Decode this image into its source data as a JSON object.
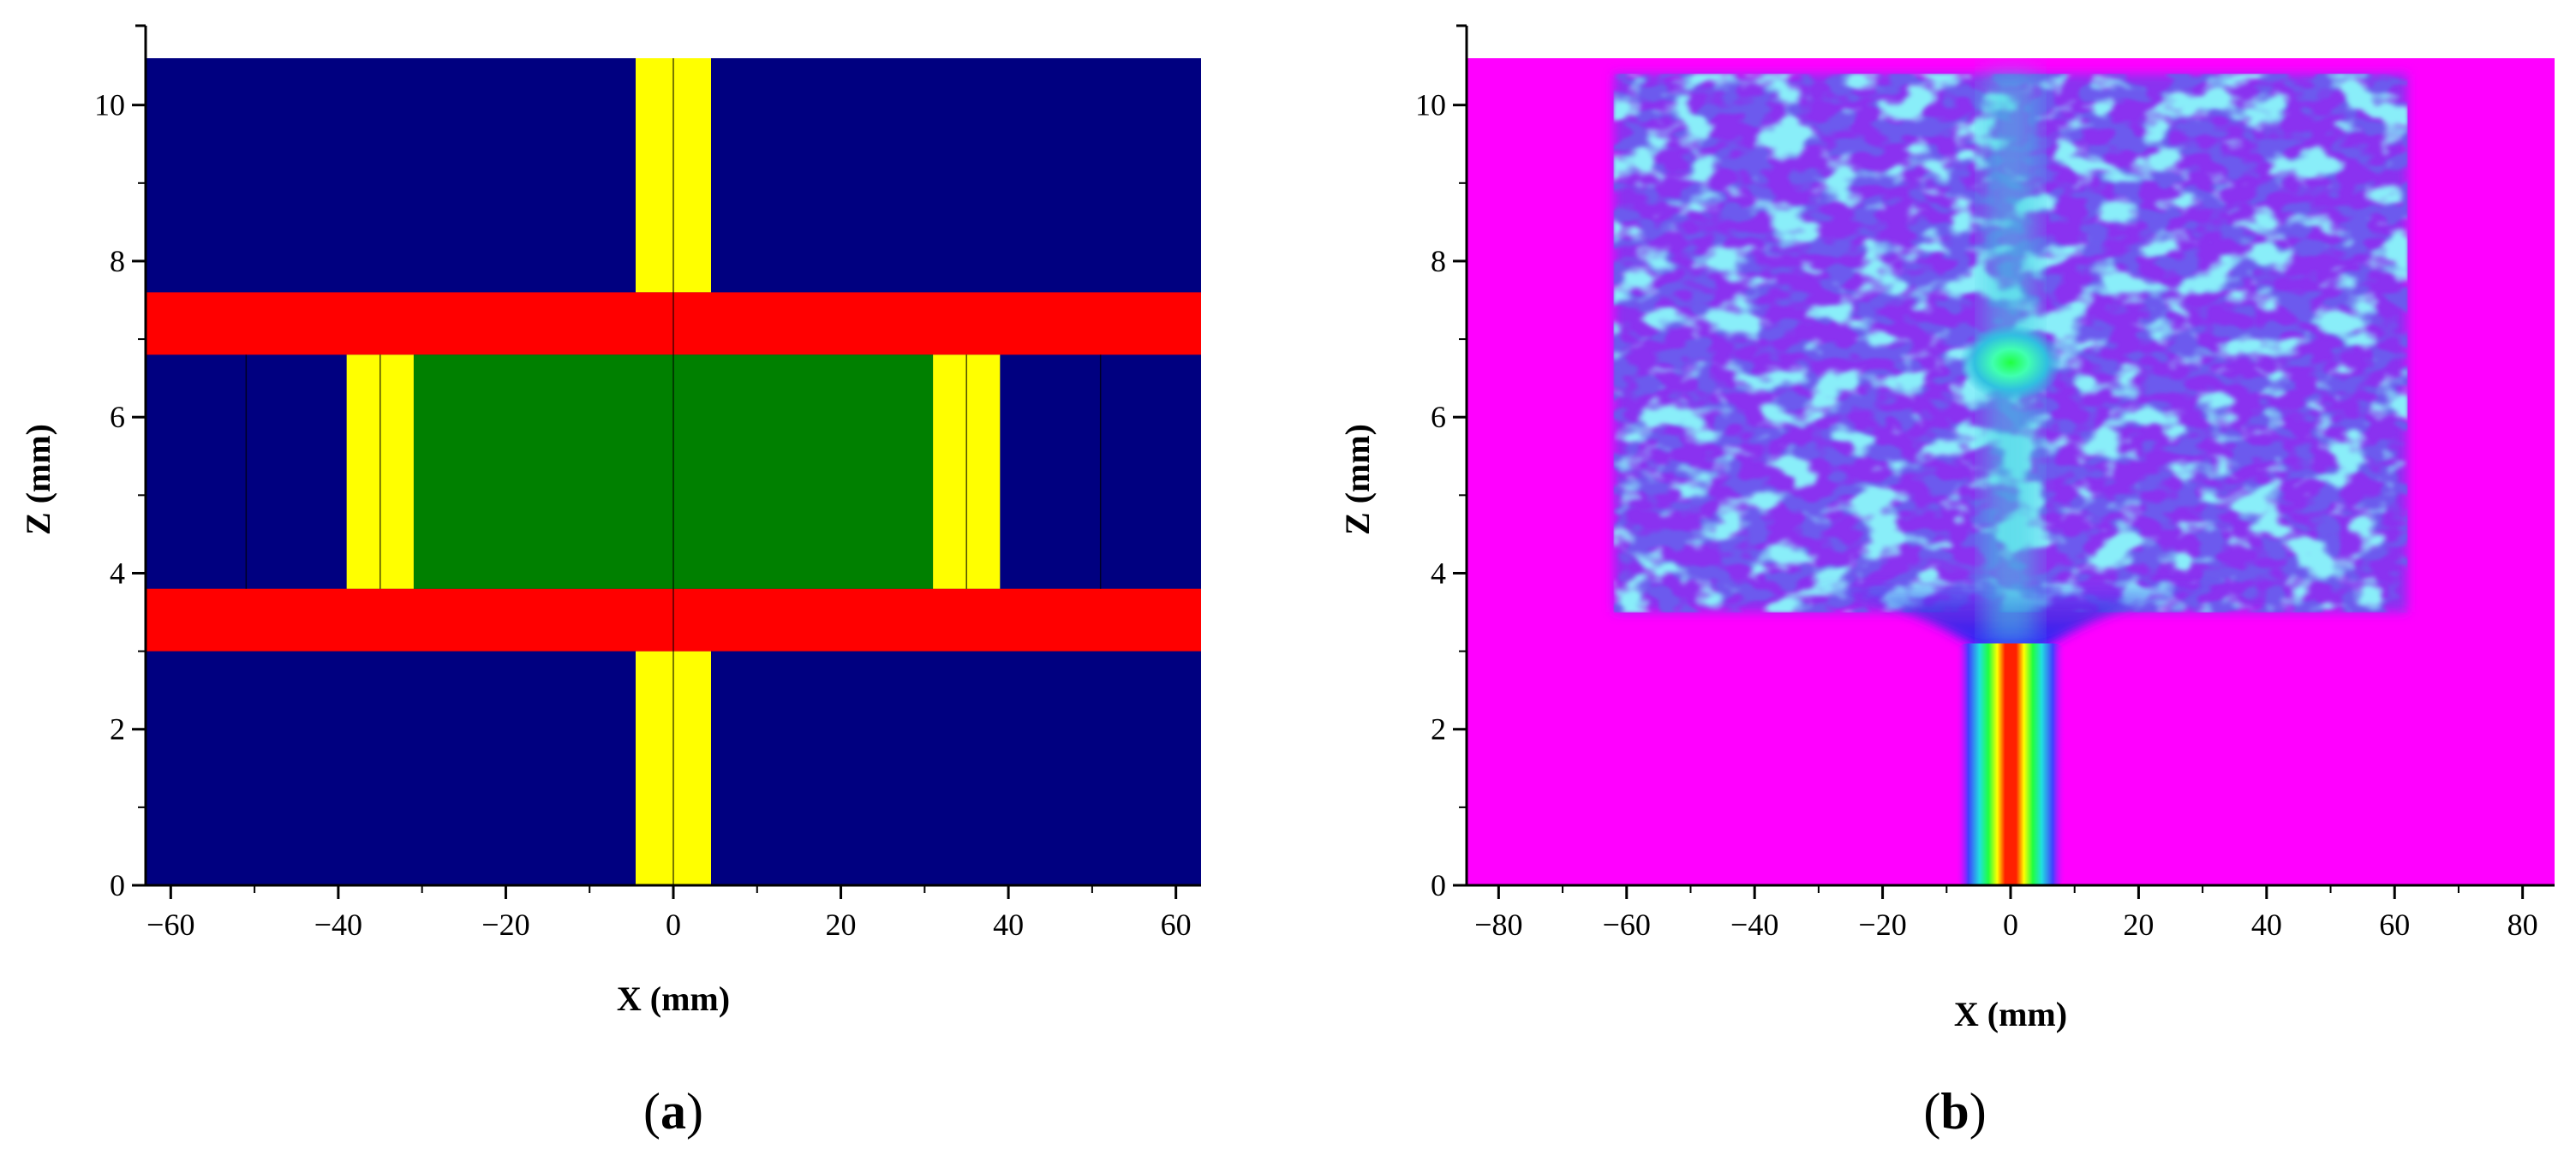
{
  "chart_data": [
    {
      "panel": "(a)",
      "panel_letter": "a",
      "type": "heatmap",
      "xlabel": "X (mm)",
      "ylabel": "Z (mm)",
      "xlim": [
        -63,
        63
      ],
      "ylim": [
        0,
        10.6
      ],
      "xticks": [
        -60,
        -40,
        -20,
        0,
        20,
        40,
        60
      ],
      "yticks": [
        0,
        2,
        4,
        6,
        8,
        10
      ],
      "colors": {
        "background": "#000080",
        "red_layer": "#ff0000",
        "yellow": "#ffff00",
        "green": "#008000"
      },
      "regions": [
        {
          "material": "background",
          "color": "#000080",
          "x": [
            -63,
            63
          ],
          "z": [
            0,
            10.6
          ]
        },
        {
          "material": "yellow",
          "color": "#ffff00",
          "x": [
            -4.5,
            4.5
          ],
          "z": [
            0,
            3.0
          ]
        },
        {
          "material": "yellow",
          "color": "#ffff00",
          "x": [
            -4.5,
            4.5
          ],
          "z": [
            7.6,
            10.6
          ]
        },
        {
          "material": "red",
          "color": "#ff0000",
          "x": [
            -63,
            63
          ],
          "z": [
            3.0,
            3.8
          ]
        },
        {
          "material": "red",
          "color": "#ff0000",
          "x": [
            -63,
            63
          ],
          "z": [
            6.8,
            7.6
          ]
        },
        {
          "material": "green",
          "color": "#008000",
          "x": [
            -31,
            31
          ],
          "z": [
            3.8,
            6.8
          ]
        },
        {
          "material": "yellow",
          "color": "#ffff00",
          "x": [
            -39,
            -31
          ],
          "z": [
            3.8,
            6.8
          ]
        },
        {
          "material": "yellow",
          "color": "#ffff00",
          "x": [
            31,
            39
          ],
          "z": [
            3.8,
            6.8
          ]
        }
      ],
      "lines": [
        {
          "x": 0,
          "z": [
            0,
            10.6
          ]
        },
        {
          "x": -35,
          "z": [
            3.8,
            6.8
          ]
        },
        {
          "x": 35,
          "z": [
            3.8,
            6.8
          ]
        },
        {
          "x": -51,
          "z": [
            3.8,
            6.8
          ]
        },
        {
          "x": 51,
          "z": [
            3.8,
            6.8
          ]
        }
      ]
    },
    {
      "panel": "(b)",
      "panel_letter": "b",
      "type": "heatmap",
      "xlabel": "X (mm)",
      "ylabel": "Z (mm)",
      "xlim": [
        -85,
        85
      ],
      "ylim": [
        0,
        10.6
      ],
      "xticks": [
        -80,
        -60,
        -40,
        -20,
        0,
        20,
        40,
        60,
        80
      ],
      "yticks": [
        0,
        2,
        4,
        6,
        8,
        10
      ],
      "colors": {
        "background": "#ff00ff",
        "low": "#8040ff",
        "mid": "#2020e0",
        "cyan": "#40e0e0",
        "high_green": "#00ff00",
        "yellow": "#ffff00",
        "peak": "#ff0000"
      },
      "source": {
        "x": [
          -6,
          6
        ],
        "z": [
          0,
          3.1
        ]
      },
      "scatter_region": {
        "x": [
          -62,
          62
        ],
        "z": [
          3.5,
          10.4
        ]
      },
      "hot_spot": {
        "x": 0,
        "z": 6.7
      }
    }
  ]
}
